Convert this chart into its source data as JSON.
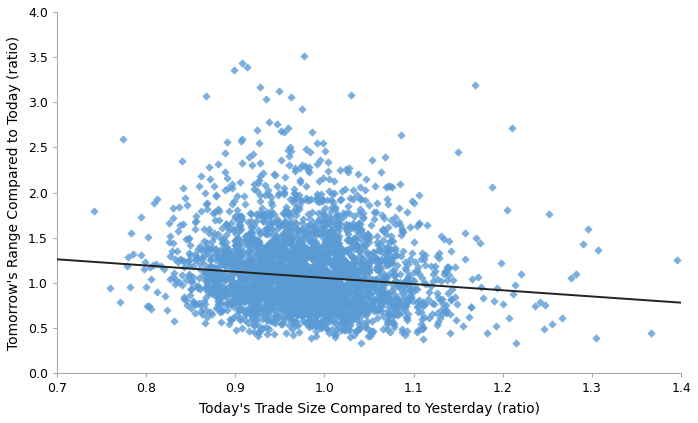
{
  "title": "",
  "xlabel": "Today's Trade Size Compared to Yesterday (ratio)",
  "ylabel": "Tomorrow's Range Compared to Today (ratio)",
  "xlim": [
    0.7,
    1.4
  ],
  "ylim": [
    0.0,
    4.0
  ],
  "xticks": [
    0.7,
    0.8,
    0.9,
    1.0,
    1.1,
    1.2,
    1.3,
    1.4
  ],
  "yticks": [
    0.0,
    0.5,
    1.0,
    1.5,
    2.0,
    2.5,
    3.0,
    3.5,
    4.0
  ],
  "scatter_color": "#5B9BD5",
  "marker": "D",
  "marker_size": 18,
  "trendline_color": "#222222",
  "trendline_x": [
    0.7,
    1.4
  ],
  "trendline_y": [
    1.26,
    0.78
  ],
  "n_points": 3000,
  "seed": 42,
  "background_color": "#ffffff",
  "xlabel_fontsize": 10,
  "ylabel_fontsize": 10,
  "tick_fontsize": 9,
  "spine_color": "#aaaaaa"
}
